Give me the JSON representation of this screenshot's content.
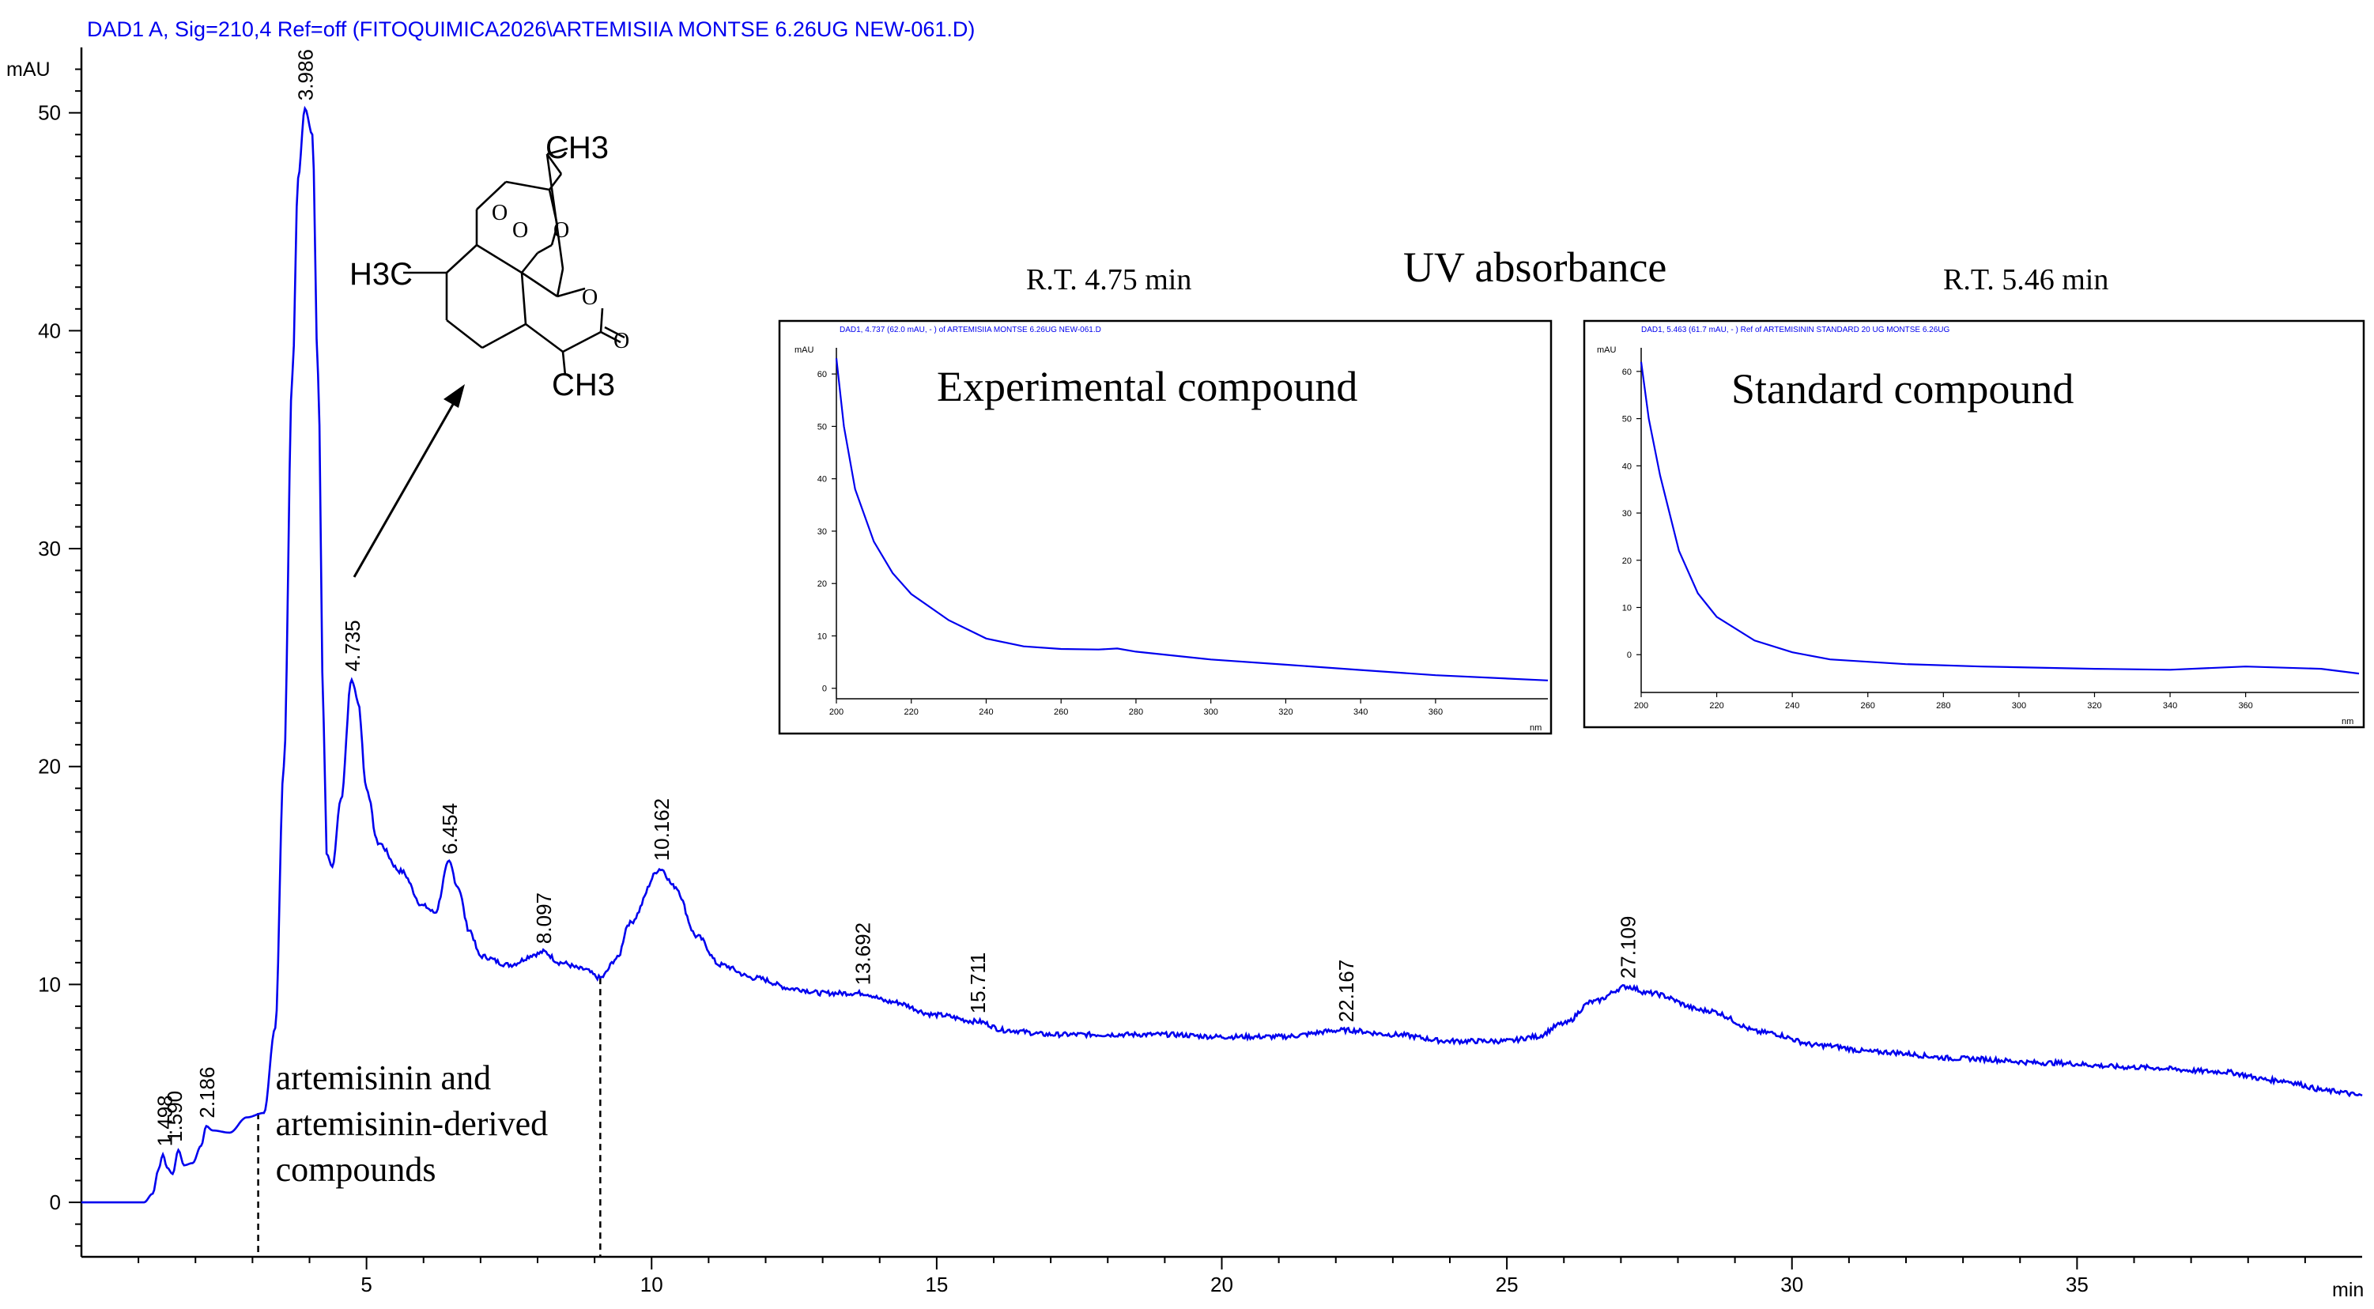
{
  "chart_data": {
    "type": "line",
    "header": "DAD1 A, Sig=210,4 Ref=off (FITOQUIMICA2026\\ARTEMISIIA MONTSE 6.26UG NEW-061.D)",
    "ylabel": "mAU",
    "xlabel": "min",
    "xlim": [
      0,
      40
    ],
    "ylim": [
      -2.5,
      53
    ],
    "x_ticks": [
      5,
      10,
      15,
      20,
      25,
      30,
      35
    ],
    "y_ticks": [
      0,
      10,
      20,
      30,
      40,
      50
    ],
    "series": [
      {
        "color": "#0000ee",
        "points": [
          [
            0,
            0
          ],
          [
            1.1,
            0
          ],
          [
            1.25,
            0.4
          ],
          [
            1.35,
            1.5
          ],
          [
            1.43,
            2.2
          ],
          [
            1.5,
            1.6
          ],
          [
            1.6,
            1.3
          ],
          [
            1.7,
            2.4
          ],
          [
            1.8,
            1.7
          ],
          [
            1.95,
            1.8
          ],
          [
            2.1,
            2.6
          ],
          [
            2.19,
            3.5
          ],
          [
            2.3,
            3.3
          ],
          [
            2.6,
            3.2
          ],
          [
            2.9,
            3.9
          ],
          [
            3.2,
            4.1
          ],
          [
            3.4,
            8
          ],
          [
            3.55,
            20
          ],
          [
            3.7,
            38
          ],
          [
            3.8,
            47
          ],
          [
            3.92,
            50.2
          ],
          [
            4.05,
            49
          ],
          [
            4.15,
            38
          ],
          [
            4.25,
            22
          ],
          [
            4.3,
            16
          ],
          [
            4.4,
            15.4
          ],
          [
            4.55,
            18.5
          ],
          [
            4.74,
            24
          ],
          [
            4.85,
            23
          ],
          [
            5.0,
            19
          ],
          [
            5.2,
            16.5
          ],
          [
            5.6,
            15.2
          ],
          [
            6.0,
            13.6
          ],
          [
            6.2,
            13.3
          ],
          [
            6.45,
            15.6
          ],
          [
            6.6,
            14.5
          ],
          [
            6.8,
            12.5
          ],
          [
            7.0,
            11.3
          ],
          [
            7.5,
            10.9
          ],
          [
            8.0,
            11.4
          ],
          [
            8.1,
            11.5
          ],
          [
            8.4,
            11.0
          ],
          [
            8.8,
            10.7
          ],
          [
            9.1,
            10.3
          ],
          [
            9.4,
            11.2
          ],
          [
            9.6,
            12.8
          ],
          [
            10.16,
            15.3
          ],
          [
            10.4,
            14.5
          ],
          [
            10.8,
            12.2
          ],
          [
            11.2,
            10.9
          ],
          [
            11.8,
            10.3
          ],
          [
            12.5,
            9.8
          ],
          [
            13.0,
            9.6
          ],
          [
            13.69,
            9.6
          ],
          [
            14.2,
            9.2
          ],
          [
            15.0,
            8.6
          ],
          [
            15.71,
            8.3
          ],
          [
            16.2,
            7.9
          ],
          [
            17.0,
            7.7
          ],
          [
            18.0,
            7.7
          ],
          [
            19.0,
            7.7
          ],
          [
            20.0,
            7.6
          ],
          [
            21.0,
            7.6
          ],
          [
            22.17,
            7.9
          ],
          [
            23.0,
            7.7
          ],
          [
            24.0,
            7.4
          ],
          [
            25.0,
            7.4
          ],
          [
            25.5,
            7.6
          ],
          [
            26.0,
            8.2
          ],
          [
            26.5,
            9.2
          ],
          [
            27.11,
            9.9
          ],
          [
            27.5,
            9.6
          ],
          [
            28.5,
            8.8
          ],
          [
            29.5,
            7.8
          ],
          [
            30.5,
            7.2
          ],
          [
            31.5,
            6.9
          ],
          [
            33.0,
            6.6
          ],
          [
            34.5,
            6.4
          ],
          [
            36.0,
            6.2
          ],
          [
            37.5,
            6.0
          ],
          [
            38.5,
            5.6
          ],
          [
            39.5,
            5.1
          ],
          [
            40,
            4.9
          ]
        ]
      }
    ],
    "peak_labels": [
      {
        "label": "1.498",
        "x": 1.45,
        "y": 2.2
      },
      {
        "label": "1.590",
        "x": 1.62,
        "y": 2.4
      },
      {
        "label": "2.186",
        "x": 2.19,
        "y": 3.5
      },
      {
        "label": "3.986",
        "x": 3.92,
        "y": 50.2
      },
      {
        "label": "4.735",
        "x": 4.74,
        "y": 24
      },
      {
        "label": "6.454",
        "x": 6.45,
        "y": 15.6
      },
      {
        "label": "8.097",
        "x": 8.1,
        "y": 11.5
      },
      {
        "label": "10.162",
        "x": 10.16,
        "y": 15.3
      },
      {
        "label": "13.692",
        "x": 13.69,
        "y": 9.6
      },
      {
        "label": "15.711",
        "x": 15.71,
        "y": 8.3
      },
      {
        "label": "22.167",
        "x": 22.17,
        "y": 7.9
      },
      {
        "label": "27.109",
        "x": 27.11,
        "y": 9.9
      }
    ],
    "region": {
      "x_start": 3.1,
      "x_end": 9.1,
      "label_lines": [
        "artemisinin and",
        "artemisinin-derived",
        "compounds"
      ]
    },
    "structure_labels": [
      "CH3",
      "H3C",
      "CH3"
    ],
    "insets_title": "UV absorbance",
    "insets": [
      {
        "rt_label": "R.T. 4.75 min",
        "caption": "Experimental compound",
        "header": "DAD1, 4.737 (62.0 mAU, - ) of ARTEMISIIA MONTSE 6.26UG NEW-061.D",
        "ylabel": "mAU",
        "y_ticks": [
          0,
          10,
          20,
          30,
          40,
          50,
          60
        ],
        "x_ticks": [
          200,
          220,
          240,
          260,
          280,
          300,
          320,
          340,
          360
        ],
        "xunit": "nm",
        "xlim": [
          200,
          390
        ],
        "ylim": [
          -2,
          65
        ],
        "points": [
          [
            200,
            63
          ],
          [
            202,
            50
          ],
          [
            205,
            38
          ],
          [
            210,
            28
          ],
          [
            215,
            22
          ],
          [
            220,
            18
          ],
          [
            230,
            13
          ],
          [
            240,
            9.5
          ],
          [
            250,
            8
          ],
          [
            260,
            7.5
          ],
          [
            270,
            7.4
          ],
          [
            275,
            7.6
          ],
          [
            280,
            7
          ],
          [
            300,
            5.5
          ],
          [
            320,
            4.5
          ],
          [
            340,
            3.5
          ],
          [
            360,
            2.5
          ],
          [
            390,
            1.5
          ]
        ]
      },
      {
        "rt_label": "R.T. 5.46 min",
        "caption": "Standard compound",
        "header": "DAD1, 5.463 (61.7 mAU, - ) Ref of ARTEMISININ STANDARD 20 UG MONTSE 6.26UG",
        "ylabel": "mAU",
        "y_ticks": [
          0,
          10,
          20,
          30,
          40,
          50,
          60
        ],
        "x_ticks": [
          200,
          220,
          240,
          260,
          280,
          300,
          320,
          340,
          360
        ],
        "xunit": "nm",
        "xlim": [
          200,
          390
        ],
        "ylim": [
          -8,
          65
        ],
        "points": [
          [
            200,
            62
          ],
          [
            202,
            50
          ],
          [
            205,
            38
          ],
          [
            210,
            22
          ],
          [
            215,
            13
          ],
          [
            220,
            8
          ],
          [
            230,
            3
          ],
          [
            240,
            0.5
          ],
          [
            250,
            -1
          ],
          [
            270,
            -2
          ],
          [
            290,
            -2.5
          ],
          [
            320,
            -3
          ],
          [
            340,
            -3.2
          ],
          [
            360,
            -2.5
          ],
          [
            380,
            -3
          ],
          [
            390,
            -4
          ]
        ]
      }
    ]
  }
}
